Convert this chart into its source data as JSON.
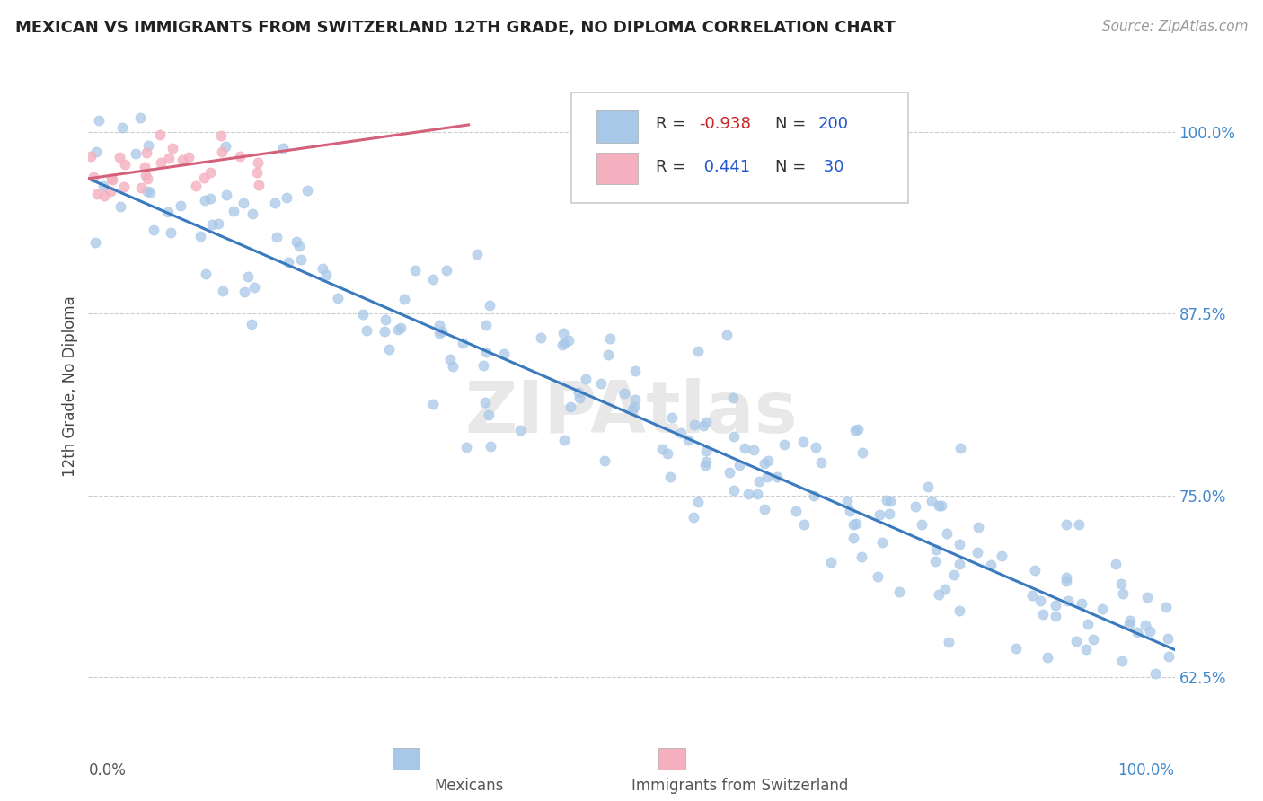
{
  "title": "MEXICAN VS IMMIGRANTS FROM SWITZERLAND 12TH GRADE, NO DIPLOMA CORRELATION CHART",
  "source": "Source: ZipAtlas.com",
  "ylabel": "12th Grade, No Diploma",
  "blue_R": -0.938,
  "blue_N": 200,
  "pink_R": 0.441,
  "pink_N": 30,
  "blue_color": "#a8c8e8",
  "pink_color": "#f4b0be",
  "blue_line_color": "#3a7abf",
  "pink_line_color": "#d4607a",
  "legend_blue_fill": "#a8c8e8",
  "legend_pink_fill": "#f4b0be",
  "background_color": "#ffffff",
  "ytick_vals": [
    0.625,
    0.75,
    0.875,
    1.0
  ],
  "ytick_labels": [
    "62.5%",
    "75.0%",
    "87.5%",
    "100.0%"
  ],
  "ytick_color": "#4488cc",
  "xmin": 0.0,
  "xmax": 1.0,
  "ymin": 0.595,
  "ymax": 1.055,
  "blue_line_x0": 0.0,
  "blue_line_y0": 0.968,
  "blue_line_x1": 1.0,
  "blue_line_y1": 0.644,
  "pink_line_x0": 0.0,
  "pink_line_y0": 0.968,
  "pink_line_x1": 0.35,
  "pink_line_y1": 1.005,
  "watermark_text": "ZIPAtlas",
  "legend_text_color": "#2255cc",
  "legend_R_color": "#cc2222",
  "grid_color": "#cccccc",
  "grid_style": "--",
  "title_fontsize": 13,
  "source_fontsize": 11,
  "tick_fontsize": 12,
  "ylabel_fontsize": 12
}
